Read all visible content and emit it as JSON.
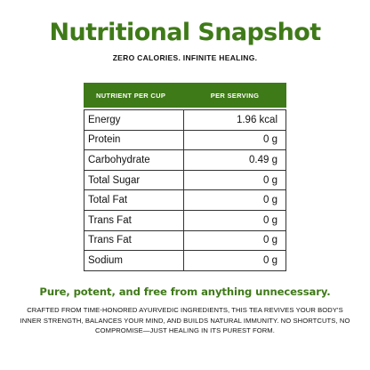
{
  "title": "Nutritional Snapshot",
  "subtitle": "ZERO CALORIES. INFINITE HEALING.",
  "accent_color": "#3f7a18",
  "table": {
    "header": {
      "nutrient": "NUTRIENT PER CUP",
      "serving": "PER SERVING"
    },
    "rows": [
      {
        "nutrient": "Energy",
        "value": "1.96 kcal"
      },
      {
        "nutrient": "Protein",
        "value": "0 g"
      },
      {
        "nutrient": "Carbohydrate",
        "value": "0.49 g"
      },
      {
        "nutrient": "Total Sugar",
        "value": "0 g"
      },
      {
        "nutrient": "Total Fat",
        "value": "0 g"
      },
      {
        "nutrient": "Trans Fat",
        "value": "0 g"
      },
      {
        "nutrient": "Trans Fat",
        "value": "0 g"
      },
      {
        "nutrient": "Sodium",
        "value": "0 g"
      }
    ]
  },
  "tagline": "Pure, potent, and free from anything unnecessary.",
  "description": "CRAFTED FROM TIME-HONORED AYURVEDIC INGREDIENTS, THIS TEA REVIVES YOUR BODY'S INNER STRENGTH, BALANCES YOUR MIND, AND BUILDS NATURAL IMMUNITY. NO SHORTCUTS, NO COMPROMISE—JUST HEALING IN ITS PUREST FORM."
}
